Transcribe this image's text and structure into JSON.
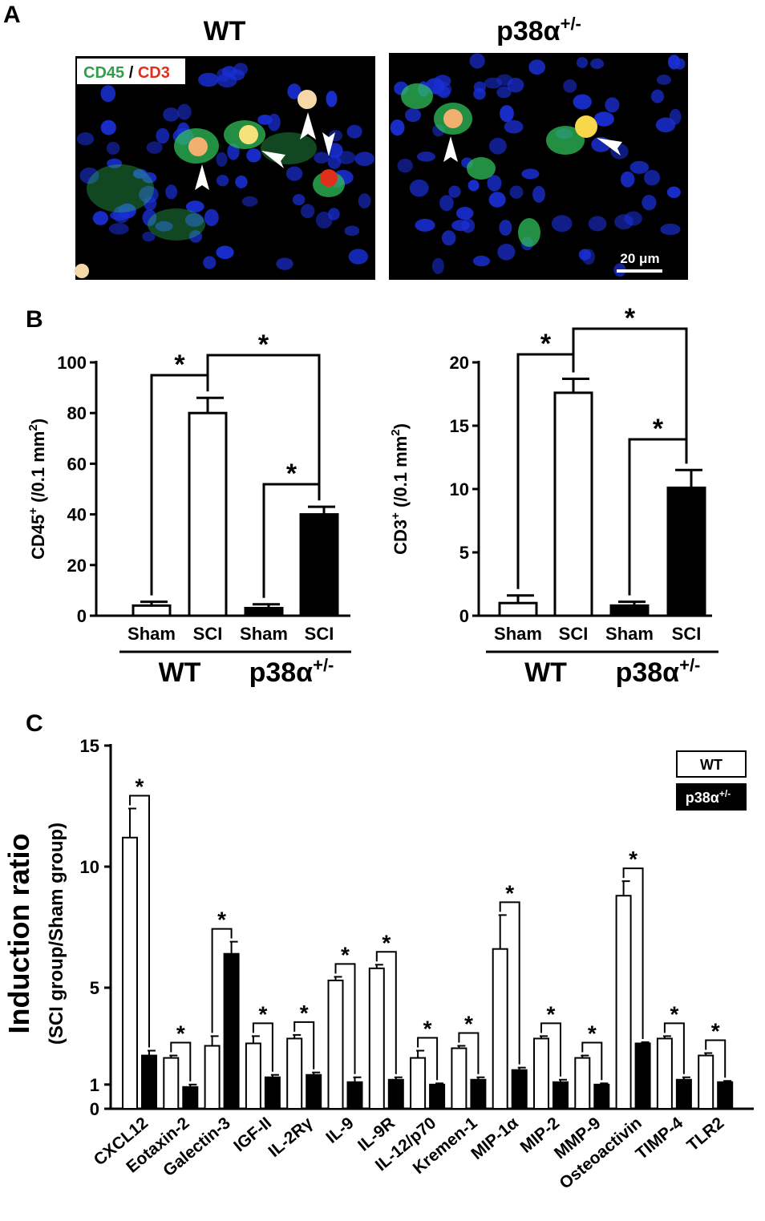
{
  "panel_a": {
    "letter": "A",
    "left_title": "WT",
    "right_title": "p38α",
    "right_title_sup": "+/-",
    "stain_green": "CD45",
    "stain_sep": " / ",
    "stain_red": "CD3",
    "scale_bar": "20 μm",
    "colors": {
      "background": "#000000",
      "nuclei": "#1a2fd6",
      "cd45": "#2fbf5a",
      "cd3": "#e0301c"
    }
  },
  "panel_b": {
    "letter": "B"
  },
  "panel_c": {
    "letter": "C"
  },
  "chart_data": [
    {
      "type": "bar",
      "panel": "B-left",
      "ylabel": "CD45",
      "ylabel_sup": "+",
      "ylabel_rest": " (/0.1 mm",
      "ylabel_sup2": "2",
      "ylabel_close": ")",
      "ylim": [
        0,
        100
      ],
      "yticks": [
        0,
        20,
        40,
        60,
        80,
        100
      ],
      "categories": [
        "Sham",
        "SCI",
        "Sham",
        "SCI"
      ],
      "groups": [
        "WT",
        "p38α"
      ],
      "group_sup": "+/-",
      "values": [
        4,
        80,
        3,
        40
      ],
      "errors": [
        1.5,
        6,
        1.5,
        3
      ],
      "colors": [
        "#ffffff",
        "#ffffff",
        "#000000",
        "#000000"
      ],
      "significance": [
        "*",
        "*",
        "*"
      ]
    },
    {
      "type": "bar",
      "panel": "B-right",
      "ylabel": "CD3",
      "ylabel_sup": "+",
      "ylabel_rest": " (/0.1 mm",
      "ylabel_sup2": "2",
      "ylabel_close": ")",
      "ylim": [
        0,
        20
      ],
      "yticks": [
        0,
        5,
        10,
        15,
        20
      ],
      "categories": [
        "Sham",
        "SCI",
        "Sham",
        "SCI"
      ],
      "groups": [
        "WT",
        "p38α"
      ],
      "group_sup": "+/-",
      "values": [
        1.0,
        17.6,
        0.8,
        10.1
      ],
      "errors": [
        0.6,
        1.1,
        0.3,
        1.4
      ],
      "colors": [
        "#ffffff",
        "#ffffff",
        "#000000",
        "#000000"
      ],
      "significance": [
        "*",
        "*",
        "*"
      ]
    },
    {
      "type": "bar",
      "panel": "C",
      "ylabel": "Induction ratio",
      "ylabel2": "(SCI group/Sham group)",
      "ylim": [
        0,
        15
      ],
      "yticks": [
        0,
        1,
        5,
        10,
        15
      ],
      "categories": [
        "CXCL12",
        "Eotaxin-2",
        "Galectin-3",
        "IGF-II",
        "IL-2Rγ",
        "IL-9",
        "IL-9R",
        "IL-12/p70",
        "Kremen-1",
        "MIP-1α",
        "MIP-2",
        "MMP-9",
        "Osteoactivin",
        "TIMP-4",
        "TLR2"
      ],
      "series": [
        {
          "name": "WT",
          "color": "#ffffff",
          "values": [
            11.2,
            2.1,
            2.6,
            2.7,
            2.9,
            5.3,
            5.8,
            2.1,
            2.5,
            6.6,
            2.9,
            2.1,
            8.8,
            2.9,
            2.2
          ],
          "errors": [
            1.2,
            0.1,
            0.4,
            0.3,
            0.15,
            0.15,
            0.15,
            0.3,
            0.1,
            1.4,
            0.1,
            0.1,
            0.6,
            0.1,
            0.1
          ]
        },
        {
          "name": "p38α",
          "name_sup": "+/-",
          "color": "#000000",
          "values": [
            2.2,
            0.9,
            6.4,
            1.3,
            1.4,
            1.1,
            1.2,
            1.0,
            1.2,
            1.6,
            1.1,
            1.0,
            2.7,
            1.2,
            1.1
          ],
          "errors": [
            0.2,
            0.1,
            0.5,
            0.1,
            0.1,
            0.2,
            0.1,
            0.05,
            0.1,
            0.1,
            0.1,
            0.05,
            0.05,
            0.1,
            0.05
          ]
        }
      ],
      "significance": "*"
    }
  ]
}
